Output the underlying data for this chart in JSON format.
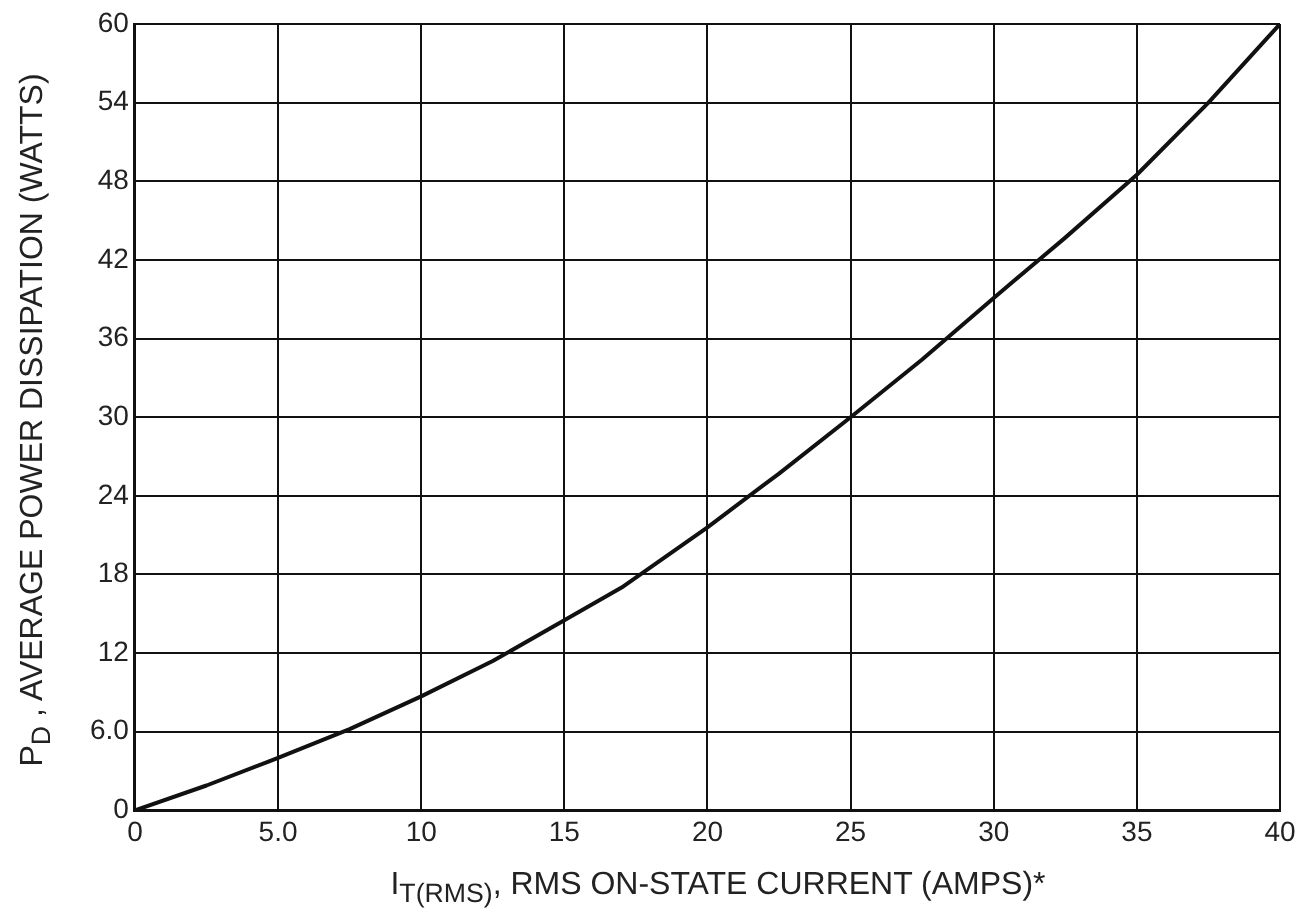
{
  "chart_data": {
    "type": "line",
    "xlabel": "I$_{T(RMS)}$, RMS ON-STATE CURRENT (AMPS)*",
    "ylabel": "P$_{D}$ , AVERAGE POWER DISSIPATION (WATTS)",
    "x": [
      0,
      2.5,
      5,
      7.5,
      10,
      12.5,
      15,
      17,
      20,
      22.5,
      25,
      27.5,
      30,
      32.5,
      35,
      37.5,
      40
    ],
    "series": [
      {
        "color": "#111111",
        "values": [
          0,
          1.9,
          4,
          6.2,
          8.7,
          11.4,
          14.5,
          17,
          21.6,
          25.7,
          30,
          34.4,
          39.1,
          43.7,
          48.5,
          54,
          60
        ]
      }
    ],
    "xlim": [
      0,
      40
    ],
    "xticks": [
      0,
      {
        "value": 5,
        "label": "5.0"
      },
      10,
      15,
      20,
      25,
      30,
      35,
      40
    ],
    "ylim": [
      0,
      60
    ],
    "yticks": [
      0,
      {
        "value": 6,
        "label": "6.0"
      },
      12,
      18,
      24,
      30,
      36,
      42,
      48,
      54,
      60
    ],
    "grid": true,
    "marker": "none",
    "line_style": "solid"
  }
}
